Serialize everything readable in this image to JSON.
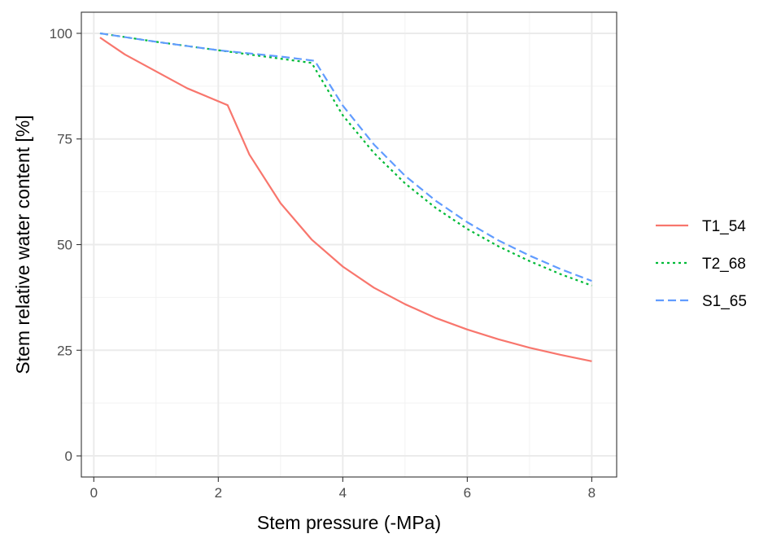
{
  "chart_data": {
    "type": "line",
    "title": "",
    "xlabel": "Stem pressure (-MPa)",
    "ylabel": "Stem relative water content [%]",
    "xlim": [
      -0.2,
      8.4
    ],
    "ylim": [
      -5,
      105
    ],
    "x_ticks": [
      0,
      2,
      4,
      6,
      8
    ],
    "y_ticks": [
      0,
      25,
      50,
      75,
      100
    ],
    "x_tick_labels": [
      "0",
      "2",
      "4",
      "6",
      "8"
    ],
    "y_tick_labels": [
      "0",
      "25",
      "50",
      "75",
      "100"
    ],
    "grid": true,
    "legend_position": "right",
    "series": [
      {
        "name": "T1_54",
        "color": "#F8766D",
        "dash": "solid",
        "x": [
          0.1,
          0.5,
          1.0,
          1.5,
          2.15,
          2.5,
          3.0,
          3.5,
          4.0,
          4.5,
          5.0,
          5.5,
          6.0,
          6.5,
          7.0,
          7.5,
          8.0
        ],
        "y": [
          99,
          95,
          91,
          87,
          83,
          71.3,
          59.8,
          51.2,
          44.8,
          39.8,
          35.9,
          32.6,
          29.9,
          27.6,
          25.6,
          23.9,
          22.4
        ]
      },
      {
        "name": "T2_68",
        "color": "#00BA38",
        "dash": "dotted",
        "x": [
          0.1,
          1.0,
          2.0,
          3.0,
          3.5,
          4.0,
          4.5,
          5.0,
          5.5,
          6.0,
          6.5,
          7.0,
          7.5,
          8.0
        ],
        "y": [
          100,
          98,
          96,
          94,
          93,
          80.6,
          71.7,
          64.5,
          58.6,
          53.7,
          49.6,
          46.1,
          43.0,
          40.3
        ]
      },
      {
        "name": "S1_65",
        "color": "#619CFF",
        "dash": "dashed",
        "x": [
          0.1,
          1.0,
          2.0,
          3.0,
          3.55,
          4.0,
          4.5,
          5.0,
          5.5,
          6.0,
          6.5,
          7.0,
          7.5,
          8.0
        ],
        "y": [
          100,
          98,
          96,
          94.5,
          93.5,
          82.9,
          73.7,
          66.3,
          60.3,
          55.3,
          51.0,
          47.4,
          44.2,
          41.4
        ]
      }
    ]
  }
}
